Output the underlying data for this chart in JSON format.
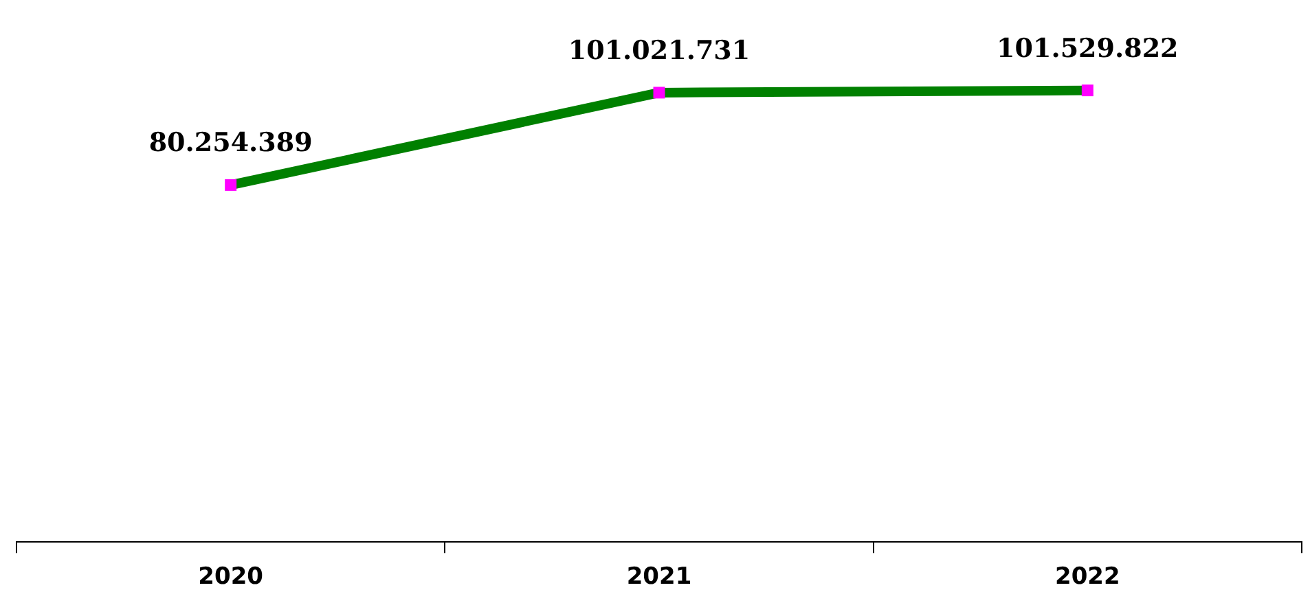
{
  "chart_data": {
    "type": "line",
    "categories": [
      "2020",
      "2021",
      "2022"
    ],
    "series": [
      {
        "color": "#008000",
        "values": [
          80254389,
          101021731,
          101529822
        ],
        "value_labels": [
          "80.254.389",
          "101.021.731",
          "101.529.822"
        ],
        "colors": [
          "#ff00ff",
          "#ff00ff",
          "#ff00ff"
        ]
      }
    ],
    "marker": "square",
    "line_style": "solid",
    "grid": false,
    "legend": false,
    "tick_labels": "x"
  }
}
